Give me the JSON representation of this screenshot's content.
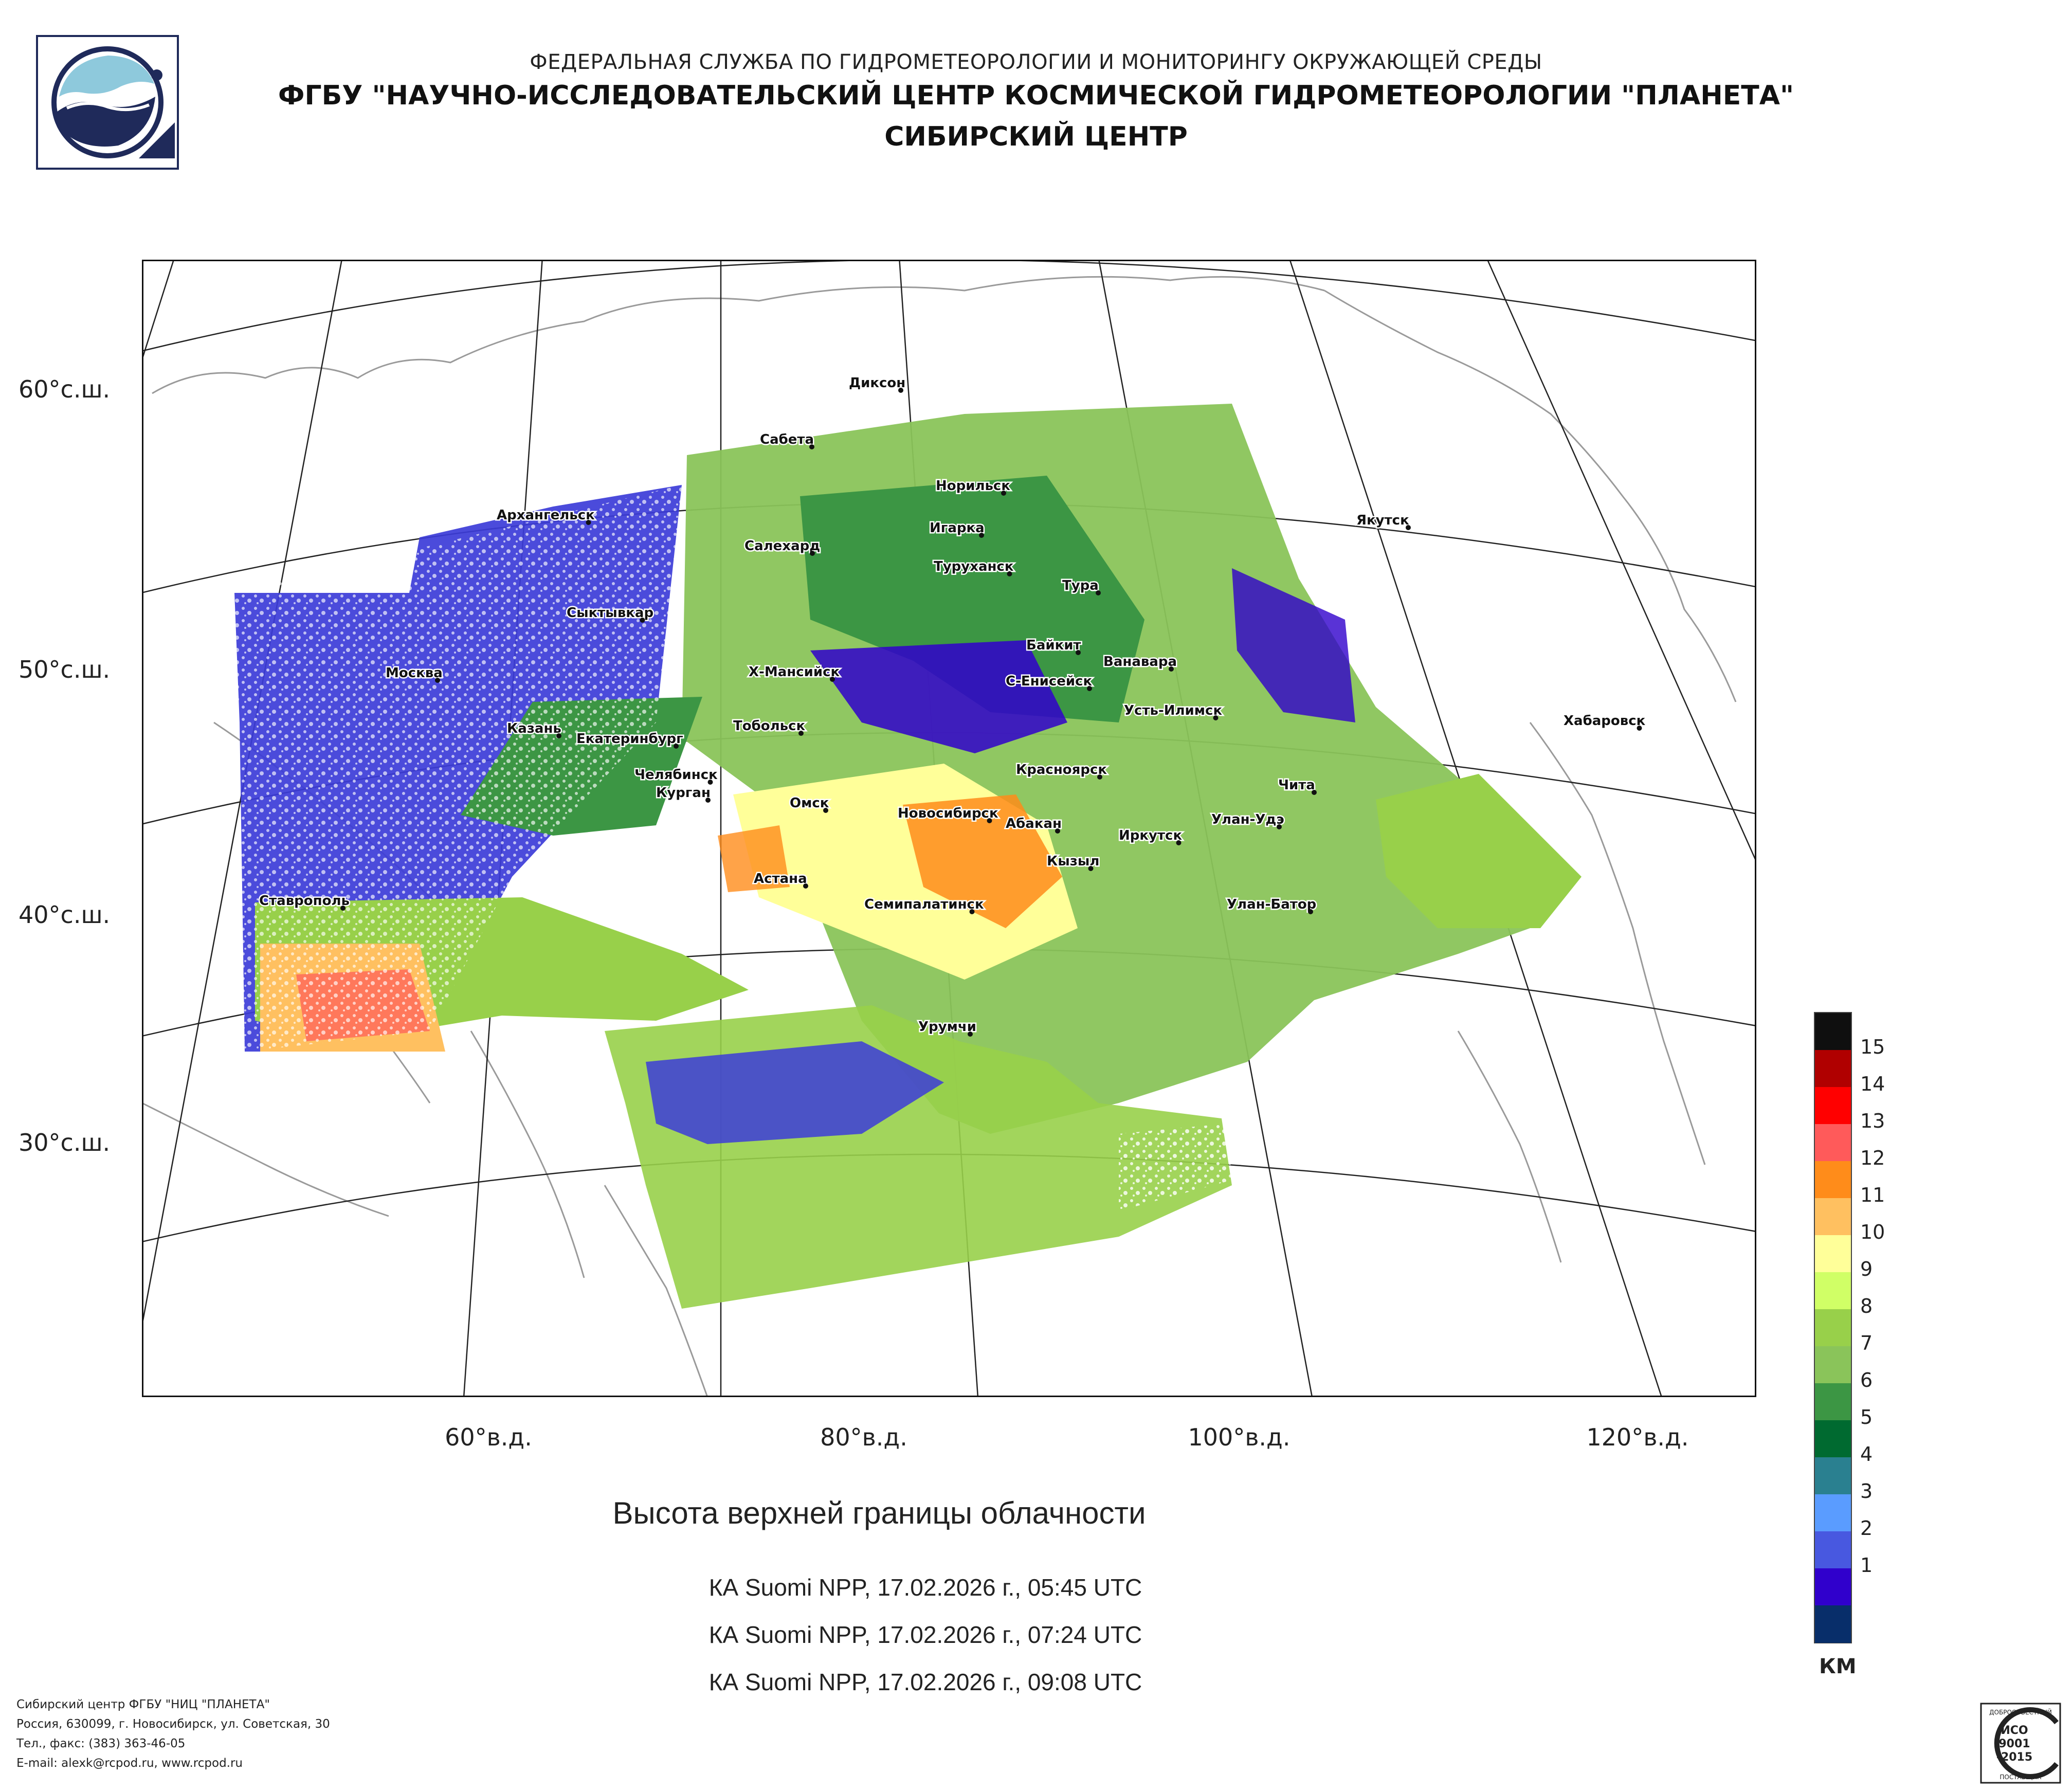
{
  "header": {
    "agency": "ФЕДЕРАЛЬНАЯ СЛУЖБА ПО ГИДРОМЕТЕОРОЛОГИИ И МОНИТОРИНГУ ОКРУЖАЮЩЕЙ СРЕДЫ",
    "institute": "ФГБУ \"НАУЧНО-ИССЛЕДОВАТЕЛЬСКИЙ ЦЕНТР КОСМИЧЕСКОЙ ГИДРОМЕТЕОРОЛОГИИ \"ПЛАНЕТА\"",
    "center": "СИБИРСКИЙ ЦЕНТР"
  },
  "map": {
    "lat_labels": [
      "60°с.ш.",
      "50°с.ш.",
      "40°с.ш.",
      "30°с.ш."
    ],
    "lon_labels": [
      "60°в.д.",
      "80°в.д.",
      "100°в.д.",
      "120°в.д."
    ],
    "cities": [
      "Диксон",
      "Сабета",
      "Норильск",
      "Архангельск",
      "Салехард",
      "Игарка",
      "Туруханск",
      "Якутск",
      "Тура",
      "Сыктывкар",
      "Байкит",
      "Ванавара",
      "Москва",
      "Х-Мансийск",
      "С-Енисейск",
      "Усть-Илимск",
      "Казань",
      "Тобольск",
      "Екатеринбург",
      "Хабаровск",
      "Челябинск",
      "Курган",
      "Красноярск",
      "Омск",
      "Новосибирск",
      "Чита",
      "Абакан",
      "Улан-Удэ",
      "Иркутск",
      "Кызыл",
      "Астана",
      "Ставрополь",
      "Семипалатинск",
      "Улан-Батор",
      "Урумчи"
    ]
  },
  "product": {
    "title": "Высота верхней границы облачности",
    "passes": [
      "КА Suomi NPP, 17.02.2026 г., 05:45 UTC",
      "КА Suomi NPP, 17.02.2026 г., 07:24 UTC",
      "КА Suomi NPP, 17.02.2026 г., 09:08 UTC"
    ]
  },
  "legend": {
    "unit": "КМ",
    "labels": [
      "15",
      "14",
      "13",
      "12",
      "11",
      "10",
      "9",
      "8",
      "7",
      "6",
      "5",
      "4",
      "3",
      "2",
      "1"
    ],
    "colors": [
      "#0f0f0f",
      "#b00000",
      "#ff0000",
      "#ff5a5a",
      "#ff8c1a",
      "#ffc060",
      "#ffff99",
      "#d0ff66",
      "#98d04a",
      "#8ac45a",
      "#3c9644",
      "#006a30",
      "#2a8090",
      "#5a9cff",
      "#4858e0",
      "#3000cc",
      "#082e6a"
    ]
  },
  "footer": {
    "lines": [
      "Сибирский центр ФГБУ \"НИЦ \"ПЛАНЕТА\"",
      "Россия, 630099, г. Новосибирск, ул. Советская, 30",
      "Тел., факс: (383) 363-46-05",
      "E-mail: alexk@rcpod.ru, www.rcpod.ru"
    ],
    "badge": [
      "ДОБРОСОВЕСТНЫЙ",
      "ИСО",
      "9001",
      "-2015",
      "ПОСТАВЩИК"
    ]
  }
}
